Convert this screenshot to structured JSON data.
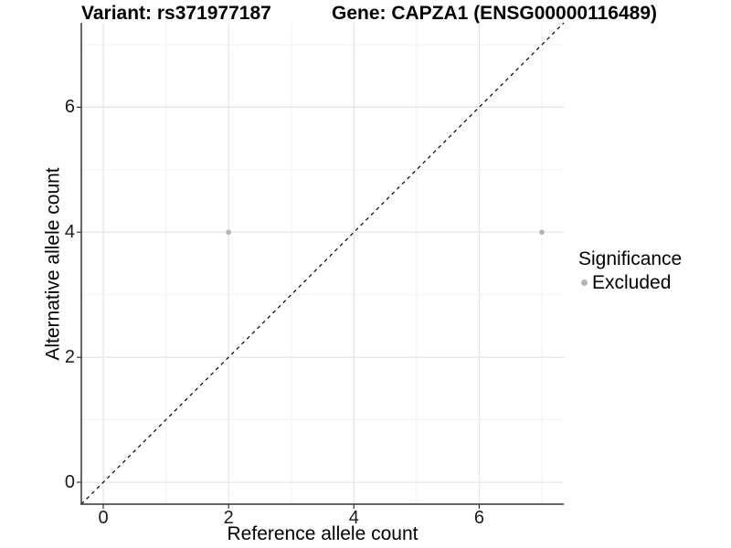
{
  "chart_data": {
    "type": "scatter",
    "title_left": "Variant: rs371977187",
    "title_right": "Gene: CAPZA1 (ENSG00000116489)",
    "xlabel": "Reference allele count",
    "ylabel": "Alternative allele count",
    "xlim": [
      -0.35,
      7.35
    ],
    "ylim": [
      -0.35,
      7.35
    ],
    "x_ticks": [
      0,
      2,
      4,
      6
    ],
    "y_ticks": [
      0,
      2,
      4,
      6
    ],
    "x_minor_ticks": [
      1,
      3,
      5,
      7
    ],
    "y_minor_ticks": [
      1,
      3,
      5,
      7
    ],
    "grid": "major+minor",
    "identity_line": {
      "slope": 1,
      "intercept": 0,
      "style": "dashed",
      "color": "#000000"
    },
    "series": [
      {
        "name": "Excluded",
        "color": "#b3b3b3",
        "points": [
          [
            2,
            4
          ],
          [
            7,
            4
          ]
        ]
      }
    ],
    "legend": {
      "title": "Significance",
      "position": "right",
      "items": [
        {
          "label": "Excluded",
          "color": "#b3b3b3"
        }
      ]
    },
    "colors": {
      "background": "#ffffff",
      "grid_major": "#e4e4e4",
      "grid_minor": "#f1f1f1",
      "axis_line": "#333333",
      "tick_mark": "#333333",
      "tick_label": "#1a1a1a",
      "text": "#000000"
    }
  }
}
